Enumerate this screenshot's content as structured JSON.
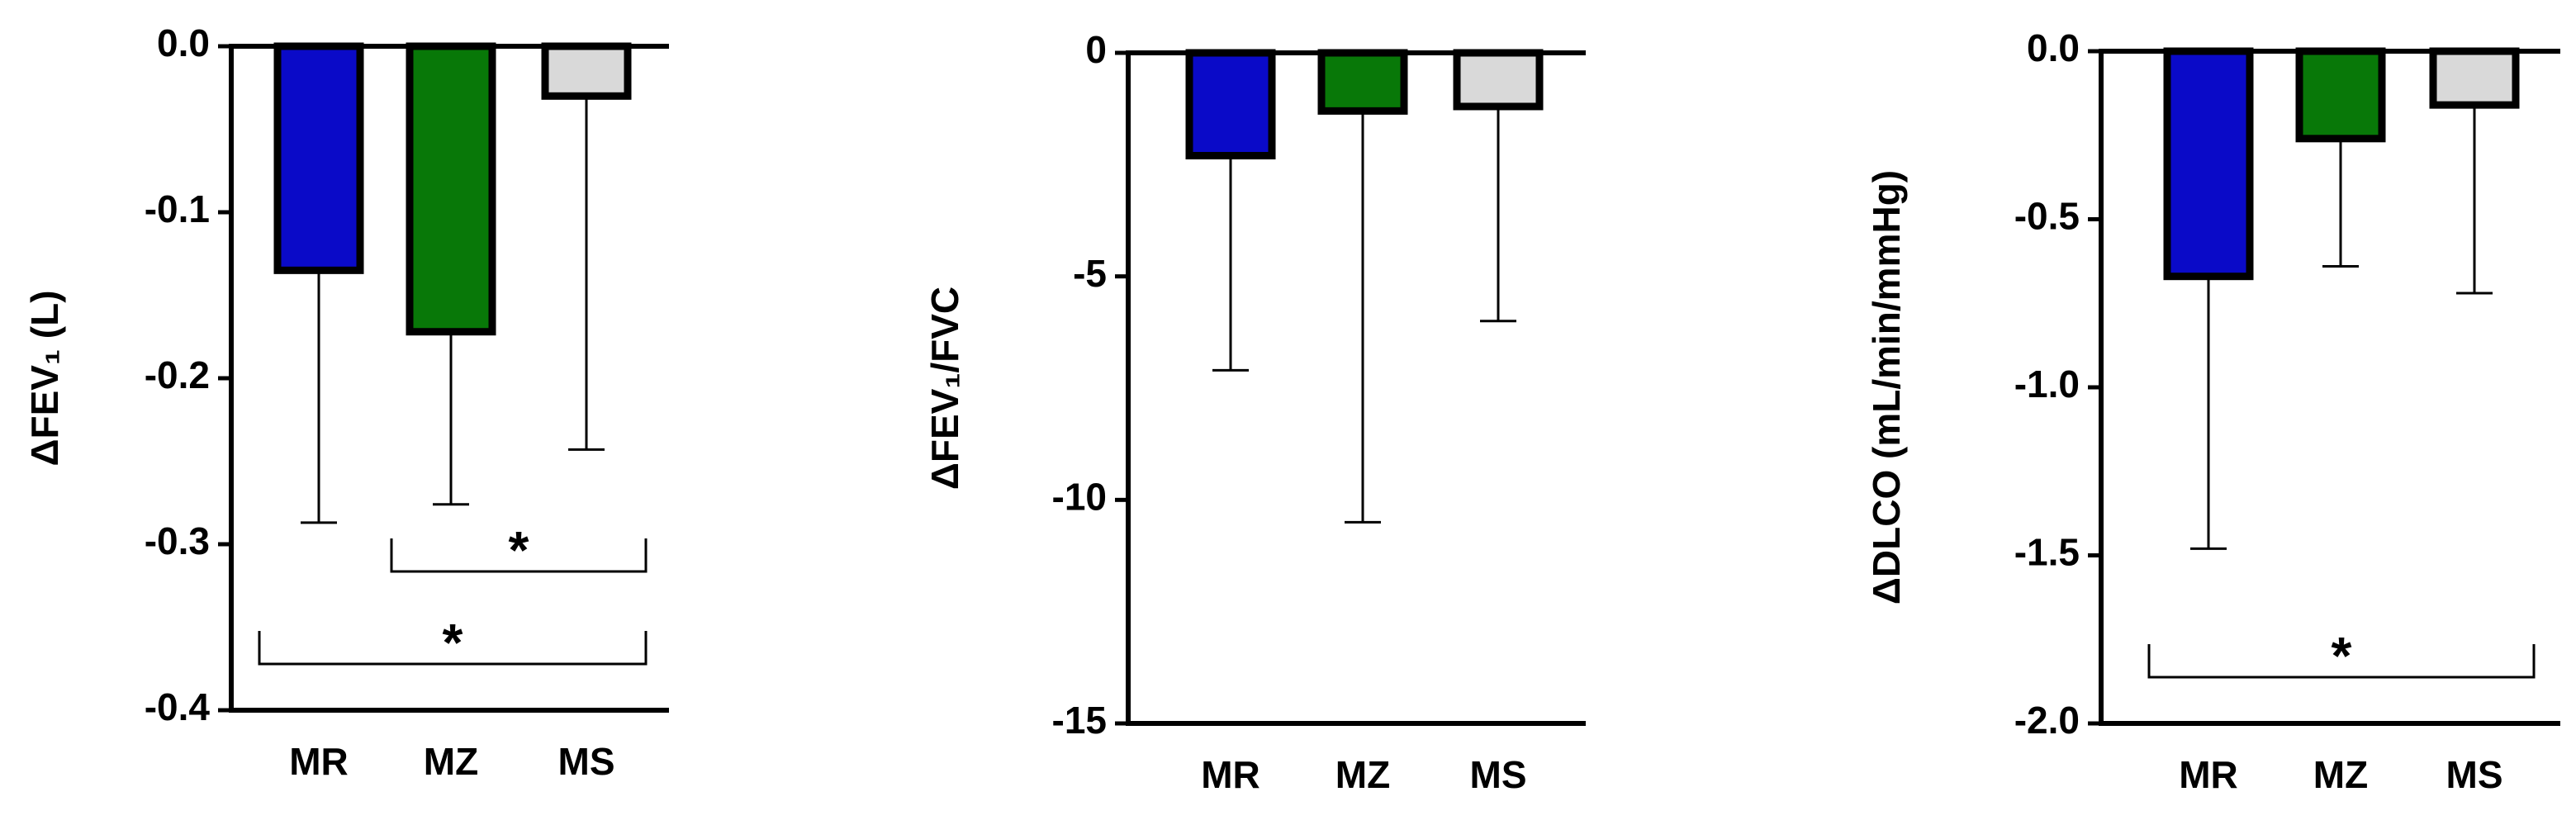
{
  "chart_data": [
    {
      "type": "bar",
      "y_label": "ΔFEV₁ (L)",
      "categories": [
        "MR",
        "MZ",
        "MS"
      ],
      "values": [
        -0.135,
        -0.172,
        -0.03
      ],
      "errors": [
        0.152,
        0.104,
        0.213
      ],
      "colors": [
        "#0a0ac8",
        "#087808",
        "#d9d9d9"
      ],
      "ylim": [
        -0.4,
        0
      ],
      "yticks": [
        {
          "value": 0,
          "label": "0.0"
        },
        -0.1,
        -0.2,
        -0.3,
        -0.4
      ],
      "significance": [
        {
          "categories": [
            "MZ",
            "MS"
          ],
          "label": "*"
        },
        {
          "categories": [
            "MR",
            "MS"
          ],
          "label": "*"
        }
      ]
    },
    {
      "type": "bar",
      "y_label": "ΔFEV₁/FVC",
      "categories": [
        "MR",
        "MZ",
        "MS"
      ],
      "values": [
        -2.3,
        -1.3,
        -1.2
      ],
      "errors": [
        4.8,
        9.2,
        4.8
      ],
      "colors": [
        "#0a0ac8",
        "#087808",
        "#d9d9d9"
      ],
      "ylim": [
        -15,
        0
      ],
      "yticks": [
        0,
        -5,
        -10,
        -15
      ]
    },
    {
      "type": "bar",
      "y_label": "ΔDLCO (mL/min/mmHg)",
      "categories": [
        "MR",
        "MZ",
        "MS"
      ],
      "values": [
        -0.67,
        -0.26,
        -0.16
      ],
      "errors": [
        0.81,
        0.38,
        0.56
      ],
      "colors": [
        "#0a0ac8",
        "#087808",
        "#d9d9d9"
      ],
      "ylim": [
        -2,
        0
      ],
      "yticks": [
        {
          "value": 0,
          "label": "0.0"
        },
        {
          "value": -0.5,
          "label": "-0.5"
        },
        {
          "value": -1,
          "label": "-1.0"
        },
        {
          "value": -1.5,
          "label": "-1.5"
        },
        {
          "value": -2,
          "label": "-2.0"
        }
      ],
      "significance": [
        {
          "categories": [
            "MR",
            "MS"
          ],
          "label": "*"
        }
      ]
    }
  ]
}
